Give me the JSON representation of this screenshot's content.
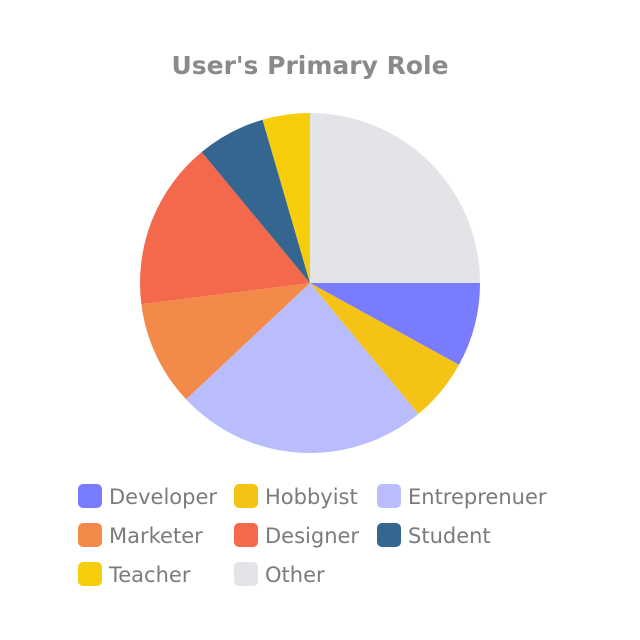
{
  "chart_data": {
    "type": "pie",
    "title": "User's Primary Role",
    "slices": [
      {
        "label": "Developer",
        "value": 8,
        "color": "#7a7cff"
      },
      {
        "label": "Hobbyist",
        "value": 6,
        "color": "#f5c315"
      },
      {
        "label": "Entreprenuer",
        "value": 24,
        "color": "#babdfd"
      },
      {
        "label": "Marketer",
        "value": 10,
        "color": "#f38a4a"
      },
      {
        "label": "Designer",
        "value": 16,
        "color": "#f4694b"
      },
      {
        "label": "Student",
        "value": 6.5,
        "color": "#34668f"
      },
      {
        "label": "Teacher",
        "value": 4.5,
        "color": "#f6cd0b"
      },
      {
        "label": "Other",
        "value": 25,
        "color": "#e3e3e8"
      }
    ],
    "start_angle": "3 o'clock",
    "direction": "clockwise",
    "legend_position": "bottom"
  }
}
